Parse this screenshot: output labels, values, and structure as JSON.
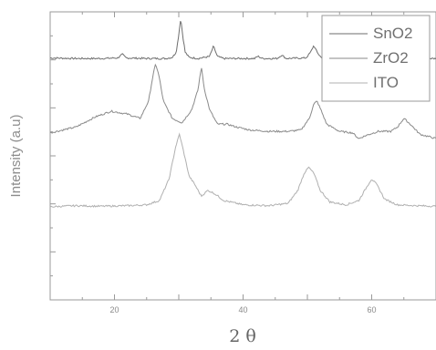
{
  "chart_data": {
    "type": "line",
    "title": "",
    "xlabel": "2 θ",
    "ylabel": "Intensity (a.u)",
    "xlim": [
      10,
      70
    ],
    "x_ticks": [
      20,
      40,
      60
    ],
    "y_ticks_labeled": false,
    "grid": false,
    "legend": "top-right",
    "series": [
      {
        "name": "SnO2",
        "color": "#6e6e6e",
        "points": [
          [
            10,
            0.84
          ],
          [
            14,
            0.838
          ],
          [
            18,
            0.838
          ],
          [
            20.5,
            0.84
          ],
          [
            21.2,
            0.853
          ],
          [
            21.8,
            0.84
          ],
          [
            25,
            0.838
          ],
          [
            28,
            0.838
          ],
          [
            29,
            0.842
          ],
          [
            29.6,
            0.86
          ],
          [
            30.0,
            0.92
          ],
          [
            30.3,
            0.98
          ],
          [
            30.6,
            0.92
          ],
          [
            31.0,
            0.86
          ],
          [
            31.6,
            0.842
          ],
          [
            33,
            0.838
          ],
          [
            34.8,
            0.845
          ],
          [
            35.4,
            0.881
          ],
          [
            36.0,
            0.845
          ],
          [
            37,
            0.838
          ],
          [
            38.5,
            0.838
          ],
          [
            41.8,
            0.838
          ],
          [
            42.3,
            0.846
          ],
          [
            43.0,
            0.838
          ],
          [
            45.3,
            0.838
          ],
          [
            46.0,
            0.85
          ],
          [
            46.7,
            0.838
          ],
          [
            49.8,
            0.84
          ],
          [
            50.5,
            0.86
          ],
          [
            51.0,
            0.883
          ],
          [
            51.5,
            0.86
          ],
          [
            52.2,
            0.84
          ],
          [
            56.0,
            0.838
          ],
          [
            56.7,
            0.845
          ],
          [
            57.3,
            0.838
          ],
          [
            59.2,
            0.84
          ],
          [
            60.0,
            0.855
          ],
          [
            60.6,
            0.873
          ],
          [
            61.2,
            0.855
          ],
          [
            62.0,
            0.84
          ],
          [
            66,
            0.838
          ],
          [
            70,
            0.838
          ]
        ]
      },
      {
        "name": "ZrO2",
        "color": "#8a8a8a",
        "points": [
          [
            10,
            0.58
          ],
          [
            14,
            0.6
          ],
          [
            17,
            0.635
          ],
          [
            19.5,
            0.655
          ],
          [
            22,
            0.645
          ],
          [
            24,
            0.63
          ],
          [
            25.3,
            0.69
          ],
          [
            26.0,
            0.78
          ],
          [
            26.4,
            0.82
          ],
          [
            26.9,
            0.78
          ],
          [
            27.6,
            0.69
          ],
          [
            29,
            0.63
          ],
          [
            30.5,
            0.615
          ],
          [
            32.0,
            0.66
          ],
          [
            33.0,
            0.73
          ],
          [
            33.5,
            0.81
          ],
          [
            34.0,
            0.73
          ],
          [
            34.8,
            0.66
          ],
          [
            36,
            0.61
          ],
          [
            37.5,
            0.61
          ],
          [
            39,
            0.6
          ],
          [
            41,
            0.59
          ],
          [
            44,
            0.585
          ],
          [
            47,
            0.585
          ],
          [
            49,
            0.59
          ],
          [
            50.3,
            0.63
          ],
          [
            51.0,
            0.68
          ],
          [
            51.5,
            0.69
          ],
          [
            52.1,
            0.66
          ],
          [
            53.0,
            0.61
          ],
          [
            55,
            0.585
          ],
          [
            57,
            0.58
          ],
          [
            58.0,
            0.56
          ],
          [
            59,
            0.57
          ],
          [
            61,
            0.585
          ],
          [
            63,
            0.585
          ],
          [
            64,
            0.6
          ],
          [
            65.0,
            0.63
          ],
          [
            66.0,
            0.61
          ],
          [
            67.5,
            0.575
          ],
          [
            70,
            0.56
          ]
        ]
      },
      {
        "name": "ITO",
        "color": "#b0b0b0",
        "points": [
          [
            10,
            0.323
          ],
          [
            14,
            0.327
          ],
          [
            18,
            0.325
          ],
          [
            22,
            0.327
          ],
          [
            25,
            0.33
          ],
          [
            27,
            0.345
          ],
          [
            28.5,
            0.42
          ],
          [
            29.5,
            0.53
          ],
          [
            30.1,
            0.575
          ],
          [
            30.7,
            0.52
          ],
          [
            31.6,
            0.43
          ],
          [
            32.5,
            0.4
          ],
          [
            33.5,
            0.36
          ],
          [
            34.5,
            0.38
          ],
          [
            35.5,
            0.37
          ],
          [
            37,
            0.345
          ],
          [
            40,
            0.33
          ],
          [
            44,
            0.327
          ],
          [
            47,
            0.335
          ],
          [
            48.5,
            0.38
          ],
          [
            49.5,
            0.44
          ],
          [
            50.2,
            0.46
          ],
          [
            51.0,
            0.44
          ],
          [
            52,
            0.38
          ],
          [
            53.5,
            0.34
          ],
          [
            56,
            0.33
          ],
          [
            58,
            0.345
          ],
          [
            59.3,
            0.395
          ],
          [
            60.0,
            0.42
          ],
          [
            60.8,
            0.4
          ],
          [
            62,
            0.35
          ],
          [
            64,
            0.33
          ],
          [
            67,
            0.327
          ],
          [
            70,
            0.325
          ]
        ]
      }
    ]
  }
}
